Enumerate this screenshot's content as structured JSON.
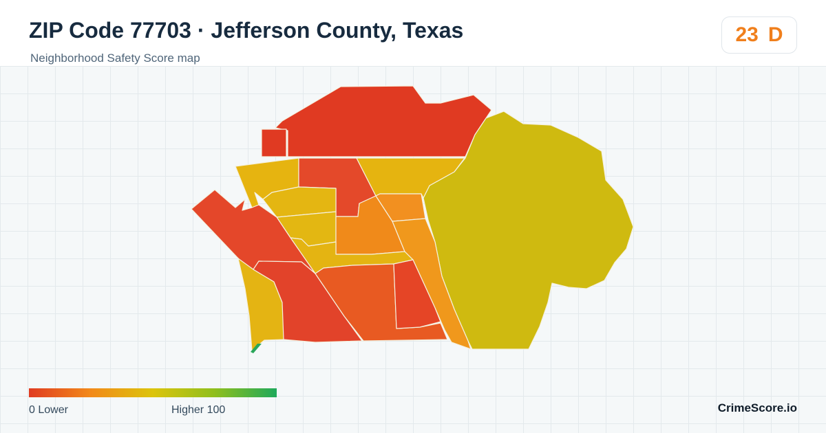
{
  "header": {
    "title": "ZIP Code 77703 · Jefferson County, Texas",
    "subtitle": "Neighborhood Safety Score map",
    "score": "23",
    "grade": "D"
  },
  "map": {
    "regions": [
      {
        "id": "north",
        "color": "#e03a22"
      },
      {
        "id": "north-notch",
        "color": "#e03a22"
      },
      {
        "id": "east-large",
        "color": "#cfba10"
      },
      {
        "id": "west-yellow",
        "color": "#e6b410"
      },
      {
        "id": "center-red",
        "color": "#e4492a"
      },
      {
        "id": "north-yellow",
        "color": "#e5b410"
      },
      {
        "id": "mid-light-yellow-1",
        "color": "#e4b612"
      },
      {
        "id": "mid-light-yellow-2",
        "color": "#e3b712"
      },
      {
        "id": "mid-orange",
        "color": "#f08a1a"
      },
      {
        "id": "small-orange",
        "color": "#f29020"
      },
      {
        "id": "east-orange-strip",
        "color": "#f0981c"
      },
      {
        "id": "lower-yellow-band",
        "color": "#e4b412"
      },
      {
        "id": "diagonal-red-west",
        "color": "#e4472a"
      },
      {
        "id": "southwest-yellow",
        "color": "#e4b413"
      },
      {
        "id": "south-red-center",
        "color": "#e2432a"
      },
      {
        "id": "south-orange",
        "color": "#e85a22"
      },
      {
        "id": "south-red-east",
        "color": "#e54526"
      }
    ]
  },
  "legend": {
    "min_label": "0  Lower",
    "max_label": "Higher  100",
    "gradient_colors": [
      "#e03c22",
      "#f28a1a",
      "#dcc40c",
      "#8fbf1d",
      "#1fa95b"
    ]
  },
  "brand": "CrimeScore.io"
}
